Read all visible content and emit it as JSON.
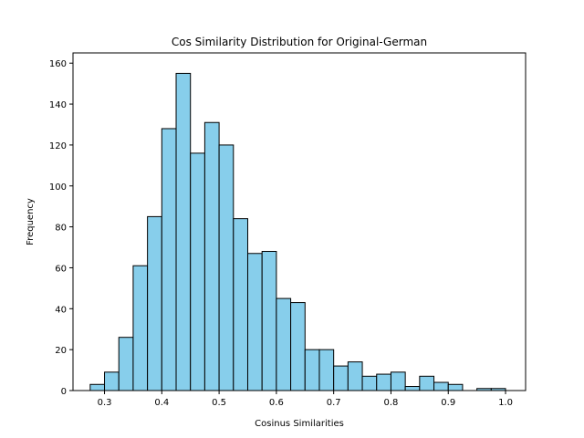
{
  "chart_data": {
    "type": "bar",
    "title": "Cos Similarity Distribution for Original-German",
    "xlabel": "Cosinus Similarities",
    "ylabel": "Frequency",
    "xlim": [
      0.245,
      1.035
    ],
    "ylim": [
      0,
      165
    ],
    "xticks": [
      0.3,
      0.4,
      0.5,
      0.6,
      0.7,
      0.8,
      0.9,
      1.0
    ],
    "xtick_labels": [
      "0.3",
      "0.4",
      "0.5",
      "0.6",
      "0.7",
      "0.8",
      "0.9",
      "1.0"
    ],
    "yticks": [
      0,
      20,
      40,
      60,
      80,
      100,
      120,
      140,
      160
    ],
    "ytick_labels": [
      "0",
      "20",
      "40",
      "60",
      "80",
      "100",
      "120",
      "140",
      "160"
    ],
    "grid": false,
    "bar_color": "#87ceeb",
    "edge_color": "#000000",
    "bins": {
      "start": 0.275,
      "width": 0.025,
      "counts": [
        3,
        9,
        26,
        61,
        85,
        128,
        155,
        116,
        131,
        120,
        84,
        67,
        68,
        45,
        43,
        20,
        20,
        12,
        14,
        7,
        8,
        9,
        2,
        7,
        4,
        3,
        0,
        1,
        1
      ]
    }
  }
}
